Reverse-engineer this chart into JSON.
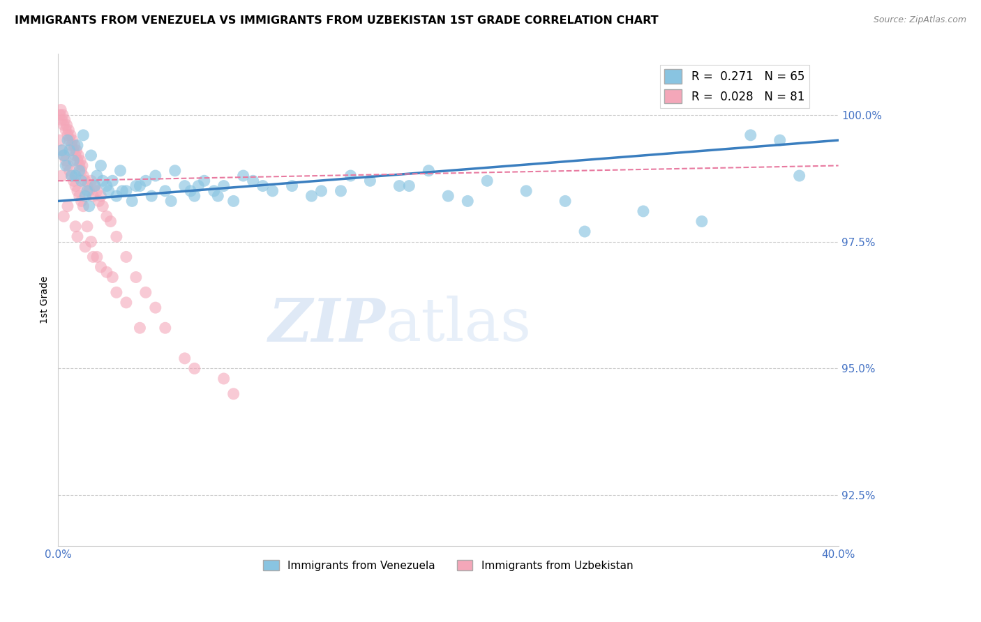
{
  "title": "IMMIGRANTS FROM VENEZUELA VS IMMIGRANTS FROM UZBEKISTAN 1ST GRADE CORRELATION CHART",
  "source": "Source: ZipAtlas.com",
  "ylabel": "1st Grade",
  "xlim": [
    0.0,
    40.0
  ],
  "ylim": [
    91.5,
    101.2
  ],
  "yticks": [
    92.5,
    95.0,
    97.5,
    100.0
  ],
  "ytick_labels": [
    "92.5%",
    "95.0%",
    "97.5%",
    "100.0%"
  ],
  "xticks": [
    0.0,
    5.0,
    10.0,
    15.0,
    20.0,
    25.0,
    30.0,
    35.0,
    40.0
  ],
  "xtick_labels": [
    "0.0%",
    "",
    "",
    "",
    "",
    "",
    "",
    "",
    "40.0%"
  ],
  "color_venezuela": "#89c4e1",
  "color_uzbekistan": "#f4a7b9",
  "color_venezuela_line": "#3a7ebf",
  "color_uzbekistan_line": "#e87aa0",
  "color_axis_text": "#4472c4",
  "watermark_zip": "ZIP",
  "watermark_atlas": "atlas",
  "venezuela_x": [
    0.3,
    0.4,
    0.5,
    0.6,
    0.8,
    0.9,
    1.0,
    1.1,
    1.2,
    1.3,
    1.5,
    1.7,
    2.0,
    2.2,
    2.5,
    2.8,
    3.0,
    3.2,
    3.5,
    3.8,
    4.0,
    4.5,
    5.0,
    5.5,
    6.0,
    6.5,
    7.0,
    7.5,
    8.0,
    8.5,
    9.0,
    9.5,
    10.0,
    11.0,
    12.0,
    13.0,
    14.5,
    16.0,
    17.5,
    19.0,
    21.0,
    24.0,
    27.0,
    35.5,
    37.0,
    0.7,
    1.4,
    1.9,
    2.3,
    3.3,
    4.2,
    5.8,
    6.8,
    8.2,
    10.5,
    13.5,
    15.0,
    18.0,
    20.0,
    22.0,
    26.0,
    30.0,
    33.0,
    38.0,
    0.2,
    1.6,
    2.6,
    4.8,
    7.2
  ],
  "venezuela_y": [
    99.2,
    99.0,
    99.5,
    99.3,
    99.1,
    98.8,
    99.4,
    98.9,
    98.7,
    99.6,
    98.5,
    99.2,
    98.8,
    99.0,
    98.6,
    98.7,
    98.4,
    98.9,
    98.5,
    98.3,
    98.6,
    98.7,
    98.8,
    98.5,
    98.9,
    98.6,
    98.4,
    98.7,
    98.5,
    98.6,
    98.3,
    98.8,
    98.7,
    98.5,
    98.6,
    98.4,
    98.5,
    98.7,
    98.6,
    98.9,
    98.3,
    98.5,
    97.7,
    99.6,
    99.5,
    98.8,
    98.4,
    98.6,
    98.7,
    98.5,
    98.6,
    98.3,
    98.5,
    98.4,
    98.6,
    98.5,
    98.8,
    98.6,
    98.4,
    98.7,
    98.3,
    98.1,
    97.9,
    98.8,
    99.3,
    98.2,
    98.5,
    98.4,
    98.6
  ],
  "uzbekistan_x": [
    0.1,
    0.15,
    0.2,
    0.25,
    0.3,
    0.35,
    0.4,
    0.45,
    0.5,
    0.55,
    0.6,
    0.65,
    0.7,
    0.75,
    0.8,
    0.85,
    0.9,
    0.95,
    1.0,
    1.05,
    1.1,
    1.15,
    1.2,
    1.25,
    1.3,
    1.4,
    1.5,
    1.6,
    1.7,
    1.8,
    1.9,
    2.0,
    2.1,
    2.2,
    2.3,
    2.5,
    2.7,
    3.0,
    3.5,
    4.0,
    4.5,
    5.0,
    5.5,
    6.5,
    7.0,
    8.5,
    9.0,
    0.1,
    0.2,
    0.3,
    0.4,
    0.5,
    0.6,
    0.7,
    0.8,
    0.9,
    1.0,
    1.1,
    1.2,
    1.3,
    1.5,
    1.7,
    2.0,
    2.5,
    3.0,
    0.5,
    0.9,
    1.4,
    2.2,
    3.5,
    0.3,
    1.0,
    1.8,
    0.2,
    2.8,
    4.2
  ],
  "uzbekistan_y": [
    100.0,
    100.1,
    99.9,
    100.0,
    99.8,
    99.9,
    99.7,
    99.8,
    99.6,
    99.7,
    99.5,
    99.6,
    99.4,
    99.5,
    99.3,
    99.4,
    99.2,
    99.3,
    99.1,
    99.2,
    99.0,
    99.1,
    98.9,
    99.0,
    98.8,
    98.7,
    98.6,
    98.5,
    98.7,
    98.4,
    98.6,
    98.5,
    98.3,
    98.4,
    98.2,
    98.0,
    97.9,
    97.6,
    97.2,
    96.8,
    96.5,
    96.2,
    95.8,
    95.2,
    95.0,
    94.8,
    94.5,
    99.5,
    99.3,
    99.2,
    99.1,
    99.0,
    98.9,
    98.8,
    98.7,
    98.6,
    98.5,
    98.4,
    98.3,
    98.2,
    97.8,
    97.5,
    97.2,
    96.9,
    96.5,
    98.2,
    97.8,
    97.4,
    97.0,
    96.3,
    98.0,
    97.6,
    97.2,
    98.8,
    96.8,
    95.8
  ],
  "ven_line_x": [
    0.0,
    40.0
  ],
  "ven_line_y": [
    98.3,
    99.5
  ],
  "uzb_line_x": [
    0.0,
    40.0
  ],
  "uzb_line_y": [
    98.7,
    99.0
  ]
}
